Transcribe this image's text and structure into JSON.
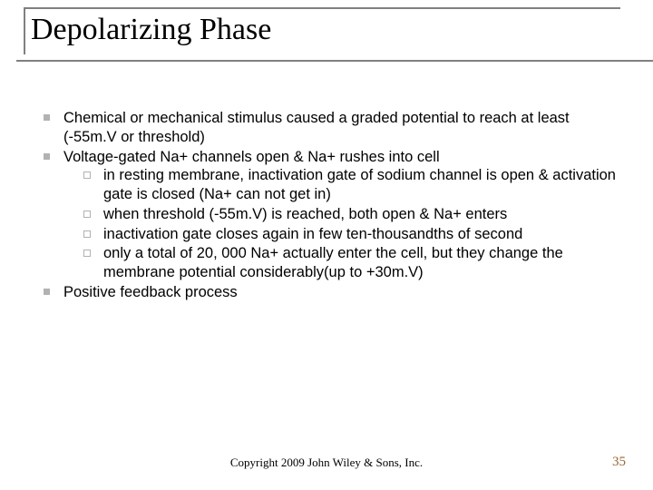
{
  "title": "Depolarizing Phase",
  "bullets": {
    "b1": "Chemical or mechanical stimulus caused a graded potential to reach at least (-55m.V or threshold)",
    "b2": "Voltage-gated Na+ channels open & Na+ rushes into cell",
    "b2_subs": {
      "s1": "in resting membrane, inactivation gate of sodium channel is open & activation gate is closed (Na+ can not get in)",
      "s2": "when threshold (-55m.V) is reached, both open & Na+ enters",
      "s3": "inactivation gate closes again in few ten-thousandths of second",
      "s4": "only a total of 20, 000 Na+ actually enter the cell, but they change the membrane potential considerably(up to +30m.V)"
    },
    "b3": "Positive feedback process"
  },
  "footer": {
    "copyright": "Copyright 2009 John Wiley & Sons, Inc.",
    "page_number": "35"
  },
  "colors": {
    "bullet_square": "#b2b2b2",
    "border_gray": "#808080",
    "page_number": "#996633"
  }
}
